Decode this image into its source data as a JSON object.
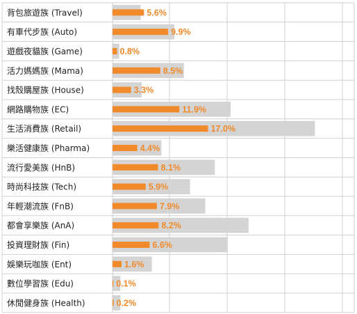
{
  "chart_data": {
    "type": "bar",
    "orientation": "horizontal",
    "grid": true,
    "categories": [
      "背包旅遊族 (Travel)",
      "有車代步族 (Auto)",
      "遊戲夜貓族 (Game)",
      "活力媽媽族 (Mama)",
      "找殼購屋族 (House)",
      "網路購物族 (EC)",
      "生活消費族 (Retail)",
      "樂活健康族 (Pharma)",
      "流行愛美族 (HnB)",
      "時尚科技族 (Tech)",
      "年輕潮流族 (FnB)",
      "都會享樂族 (AnA)",
      "投資理財族 (Fin)",
      "娛樂玩咖族 (Ent)",
      "數位學習族 (Edu)",
      "休閒健身族 (Health)"
    ],
    "series": [
      {
        "role": "background",
        "color": "#d4d4d4",
        "values": [
          5.0,
          11.0,
          1.2,
          12.7,
          5.2,
          21.0,
          36.0,
          8.7,
          18.2,
          13.8,
          16.5,
          24.2,
          20.5,
          7.0,
          1.4,
          1.4
        ]
      },
      {
        "role": "foreground",
        "color": "#f08a2a",
        "values": [
          5.6,
          9.9,
          0.8,
          8.5,
          3.3,
          11.9,
          17.0,
          4.4,
          8.1,
          5.9,
          7.9,
          8.2,
          6.6,
          1.6,
          0.1,
          0.2
        ]
      }
    ],
    "value_labels": [
      "5.6%",
      "9.9%",
      "0.8%",
      "8.5%",
      "3.3%",
      "11.9%",
      "17.0%",
      "4.4%",
      "8.1%",
      "5.9%",
      "7.9%",
      "8.2%",
      "6.6%",
      "1.6%",
      "0.1%",
      "0.2%"
    ],
    "xlim": [
      0,
      43
    ],
    "label_color": "#f08a2a",
    "grid_color": "#cfcfcf"
  }
}
